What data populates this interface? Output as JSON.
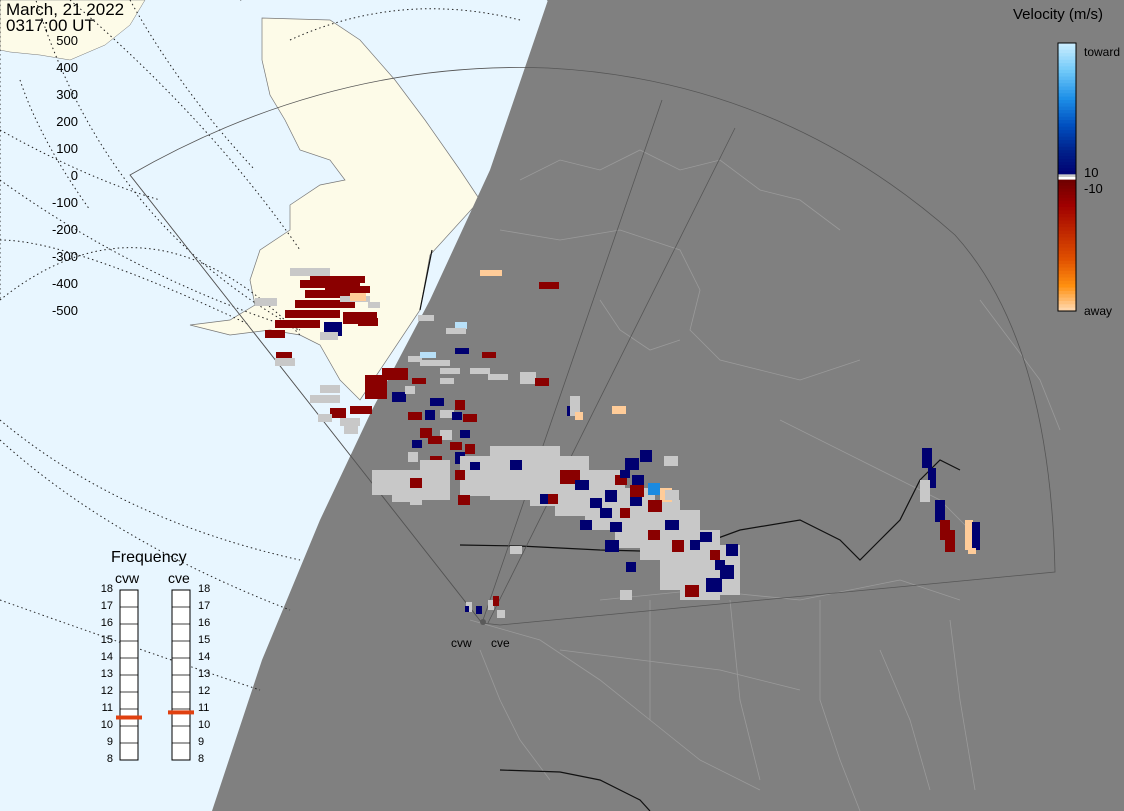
{
  "header": {
    "date": "March, 21 2022",
    "time": "0317:00 UT"
  },
  "colorbar": {
    "title": "Velocity (m/s)",
    "left_labels": [
      "500",
      "400",
      "300",
      "200",
      "100",
      "0",
      "-100",
      "-200",
      "-300",
      "-400",
      "-500"
    ],
    "toward_label": "toward",
    "away_label": "away",
    "pos_threshold": "10",
    "neg_threshold": "-10",
    "stops": [
      {
        "v": 500,
        "color": "#c8ecff"
      },
      {
        "v": 400,
        "color": "#6fc8f8"
      },
      {
        "v": 300,
        "color": "#1e90e8"
      },
      {
        "v": 200,
        "color": "#0050c0"
      },
      {
        "v": 100,
        "color": "#00208a"
      },
      {
        "v": 10,
        "color": "#000070"
      },
      {
        "v": -10,
        "color": "#700000"
      },
      {
        "v": -100,
        "color": "#a00000"
      },
      {
        "v": -200,
        "color": "#c02800"
      },
      {
        "v": -300,
        "color": "#e05000"
      },
      {
        "v": -400,
        "color": "#ff9010"
      },
      {
        "v": -500,
        "color": "#ffe0c0"
      }
    ],
    "ground_scatter_color": "#c8c8c8"
  },
  "frequency": {
    "title": "Frequency",
    "radars": [
      {
        "name": "cvw",
        "freq_mhz": 10.5
      },
      {
        "name": "cve",
        "freq_mhz": 10.8
      }
    ],
    "ticks": [
      "18",
      "17",
      "16",
      "15",
      "14",
      "13",
      "12",
      "11",
      "10",
      "9",
      "8"
    ],
    "marker_color": "#e04010"
  },
  "sites": [
    {
      "name": "cvw"
    },
    {
      "name": "cve"
    }
  ],
  "map": {
    "ocean_color": "#e8f6ff",
    "land_color": "#fdfbe8",
    "night_color": "#808080",
    "boundary_color": "#9a9a9a"
  }
}
